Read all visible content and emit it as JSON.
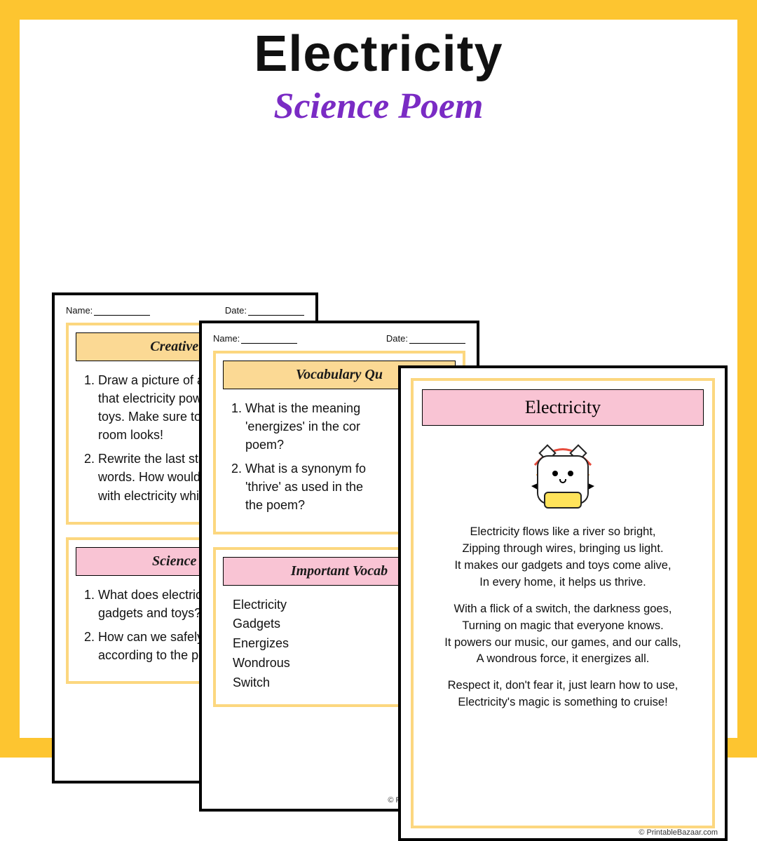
{
  "header": {
    "title": "Electricity",
    "subtitle": "Science Poem"
  },
  "colors": {
    "frame_border": "#fdc530",
    "panel_border": "#fcd77f",
    "title_yellow_bg": "#fbd994",
    "title_pink_bg": "#f9c4d4",
    "subtitle_color": "#7a2bc4",
    "text_color": "#111111",
    "sheet_border": "#000000"
  },
  "common": {
    "name_label": "Name:",
    "date_label": "Date:",
    "credit": "© PrintableBazaar.com"
  },
  "sheet1": {
    "panelA": {
      "title": "Creative Qu",
      "items": [
        "Draw a picture of a room f\nthat electricity powers, like\ntoys. Make sure to show h\nroom looks!",
        "Rewrite the last stanza of t\nwords. How would you tel\nwith electricity while still t"
      ]
    },
    "panelB": {
      "title": "Science Qu",
      "items": [
        "What does electricit\ngadgets and toys?",
        "How can we safely u\naccording to the po"
      ]
    }
  },
  "sheet2": {
    "panelA": {
      "title": "Vocabulary Qu",
      "items": [
        "What is the meaning\n'energizes' in the cor\npoem?",
        "What is a synonym fo\n'thrive' as used in the\nthe poem?"
      ]
    },
    "panelB": {
      "title": "Important Vocab",
      "vocab": [
        "Electricity",
        "Gadgets",
        "Energizes",
        "Wondrous",
        "Switch"
      ]
    }
  },
  "sheet3": {
    "title": "Electricity",
    "stanzas": [
      "Electricity flows like a river so bright,\nZipping through wires, bringing us light.\nIt makes our gadgets and toys come alive,\nIn every home, it helps us thrive.",
      "With a flick of a switch, the darkness goes,\nTurning on magic that everyone knows.\nIt powers our music, our games, and our calls,\nA wondrous force, it energizes all.",
      "Respect it, don't fear it, just learn how to use,\nElectricity's magic is something to cruise!"
    ]
  }
}
